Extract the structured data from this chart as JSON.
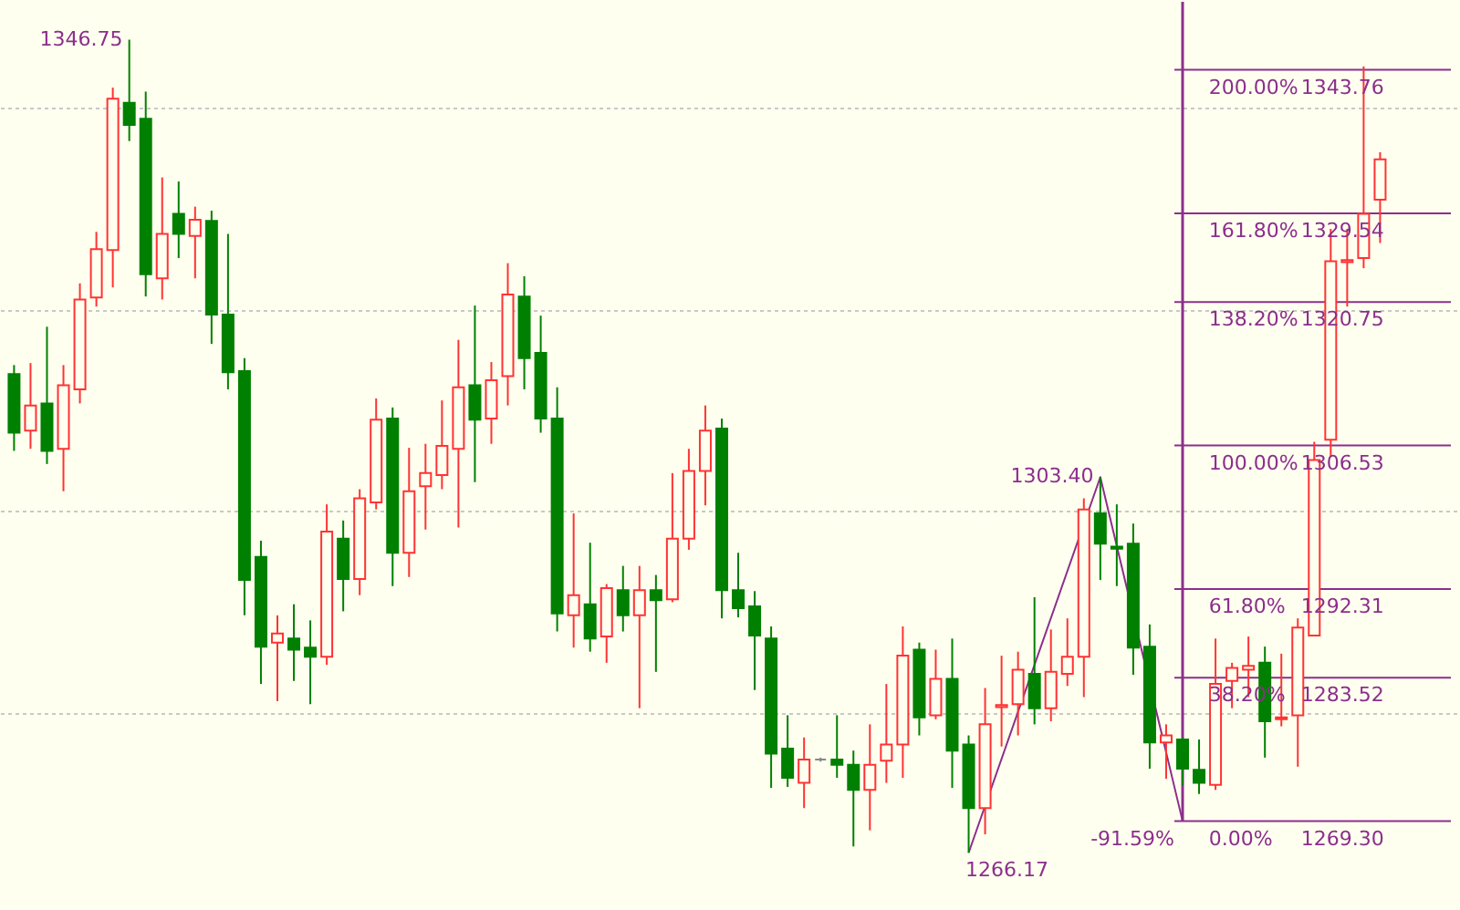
{
  "chart_data": {
    "type": "candlestick",
    "categories": [
      null,
      null,
      null,
      null,
      null,
      null,
      null,
      null,
      null,
      null,
      null,
      null,
      null,
      null,
      null,
      null,
      null,
      null,
      null,
      null,
      null,
      null,
      null,
      null,
      null,
      null,
      null,
      null,
      null,
      null,
      null,
      null,
      null,
      null,
      null,
      null,
      null,
      null,
      null,
      null,
      null,
      null,
      null,
      null,
      null,
      null,
      null,
      null,
      null,
      null,
      null,
      null,
      null,
      null,
      null,
      null,
      null,
      null,
      null,
      null,
      null,
      null,
      null,
      null,
      null,
      null,
      null,
      null,
      null,
      null,
      null,
      null,
      null,
      null,
      null,
      null,
      null,
      null,
      null,
      null,
      null,
      null,
      null,
      null
    ],
    "ohlc": [
      [
        1313.6,
        1314.5,
        1306.0,
        1307.8
      ],
      [
        1308.0,
        1314.7,
        1306.2,
        1310.5
      ],
      [
        1310.7,
        1318.3,
        1304.7,
        1306.0
      ],
      [
        1306.2,
        1314.5,
        1302.0,
        1312.5
      ],
      [
        1312.1,
        1322.6,
        1310.7,
        1321.0
      ],
      [
        1321.2,
        1327.7,
        1320.3,
        1326.0
      ],
      [
        1325.9,
        1342.0,
        1322.2,
        1340.9
      ],
      [
        1340.5,
        1346.75,
        1336.7,
        1338.3
      ],
      [
        1338.9,
        1341.6,
        1321.3,
        1323.5
      ],
      [
        1323.1,
        1333.1,
        1321.0,
        1327.5
      ],
      [
        1329.5,
        1332.7,
        1325.1,
        1327.5
      ],
      [
        1327.3,
        1330.2,
        1323.1,
        1328.9
      ],
      [
        1328.8,
        1329.8,
        1316.6,
        1319.5
      ],
      [
        1319.5,
        1327.5,
        1312.1,
        1313.8
      ],
      [
        1313.9,
        1315.2,
        1289.7,
        1293.2
      ],
      [
        1295.5,
        1297.1,
        1282.9,
        1286.6
      ],
      [
        1287.0,
        1289.7,
        1281.2,
        1287.9
      ],
      [
        1287.4,
        1290.8,
        1283.2,
        1286.3
      ],
      [
        1286.5,
        1289.2,
        1280.9,
        1285.6
      ],
      [
        1285.6,
        1300.7,
        1284.8,
        1298.0
      ],
      [
        1297.3,
        1299.1,
        1290.1,
        1293.3
      ],
      [
        1293.3,
        1302.2,
        1291.7,
        1301.3
      ],
      [
        1300.9,
        1311.2,
        1300.2,
        1309.1
      ],
      [
        1309.2,
        1310.3,
        1292.6,
        1295.9
      ],
      [
        1295.9,
        1306.3,
        1293.5,
        1302.0
      ],
      [
        1302.5,
        1306.7,
        1298.2,
        1303.8
      ],
      [
        1303.6,
        1311.0,
        1302.2,
        1306.5
      ],
      [
        1306.2,
        1317.0,
        1298.4,
        1312.3
      ],
      [
        1312.5,
        1320.4,
        1302.9,
        1309.1
      ],
      [
        1309.2,
        1314.8,
        1306.7,
        1313.0
      ],
      [
        1313.4,
        1324.6,
        1310.5,
        1321.5
      ],
      [
        1321.3,
        1323.3,
        1312.1,
        1315.2
      ],
      [
        1315.7,
        1319.4,
        1307.8,
        1309.2
      ],
      [
        1309.2,
        1312.3,
        1288.1,
        1289.9
      ],
      [
        1289.7,
        1299.8,
        1286.5,
        1291.7
      ],
      [
        1290.8,
        1296.9,
        1286.1,
        1287.4
      ],
      [
        1287.6,
        1292.8,
        1285.0,
        1292.4
      ],
      [
        1292.2,
        1294.6,
        1288.1,
        1289.7
      ],
      [
        1289.7,
        1294.6,
        1280.5,
        1292.2
      ],
      [
        1292.2,
        1293.7,
        1284.1,
        1291.2
      ],
      [
        1291.3,
        1303.8,
        1291.0,
        1297.3
      ],
      [
        1297.3,
        1306.2,
        1296.2,
        1304.0
      ],
      [
        1304.0,
        1310.5,
        1300.6,
        1308.0
      ],
      [
        1308.2,
        1309.2,
        1289.4,
        1292.2
      ],
      [
        1292.2,
        1295.9,
        1289.5,
        1290.4
      ],
      [
        1290.6,
        1292.1,
        1282.3,
        1287.7
      ],
      [
        1287.4,
        1288.6,
        1272.6,
        1276.0
      ],
      [
        1276.5,
        1279.8,
        1272.7,
        1273.6
      ],
      [
        1273.1,
        1277.6,
        1270.6,
        1275.4
      ],
      [
        1275.4,
        1275.6,
        1275.2,
        1275.4
      ],
      [
        1275.4,
        1279.8,
        1273.6,
        1274.9
      ],
      [
        1274.9,
        1276.3,
        1266.8,
        1272.4
      ],
      [
        1272.4,
        1278.9,
        1268.4,
        1274.9
      ],
      [
        1275.3,
        1282.9,
        1273.1,
        1276.9
      ],
      [
        1276.9,
        1288.6,
        1273.6,
        1285.7
      ],
      [
        1286.3,
        1287.0,
        1277.8,
        1279.6
      ],
      [
        1279.8,
        1286.3,
        1279.4,
        1283.4
      ],
      [
        1283.4,
        1287.4,
        1272.6,
        1276.3
      ],
      [
        1276.9,
        1277.8,
        1266.17,
        1270.6
      ],
      [
        1270.6,
        1282.5,
        1268.0,
        1278.9
      ],
      [
        1280.6,
        1285.7,
        1276.7,
        1280.8
      ],
      [
        1280.9,
        1286.1,
        1277.8,
        1284.3
      ],
      [
        1283.9,
        1291.5,
        1278.9,
        1280.5
      ],
      [
        1280.5,
        1288.3,
        1279.2,
        1284.1
      ],
      [
        1283.9,
        1289.4,
        1282.7,
        1285.6
      ],
      [
        1285.6,
        1301.3,
        1281.6,
        1300.2
      ],
      [
        1299.8,
        1303.4,
        1293.2,
        1296.8
      ],
      [
        1296.5,
        1300.7,
        1292.6,
        1296.3
      ],
      [
        1296.8,
        1298.8,
        1283.8,
        1286.5
      ],
      [
        1286.6,
        1288.8,
        1274.5,
        1277.1
      ],
      [
        1277.1,
        1278.9,
        1273.5,
        1277.8
      ],
      [
        1277.4,
        1277.6,
        1272.9,
        1274.5
      ],
      [
        1274.4,
        1277.4,
        1272.0,
        1273.1
      ],
      [
        1272.9,
        1287.4,
        1272.4,
        1282.9
      ],
      [
        1283.2,
        1285.0,
        1280.5,
        1284.5
      ],
      [
        1284.3,
        1287.6,
        1281.6,
        1284.7
      ],
      [
        1285.0,
        1286.6,
        1275.6,
        1279.2
      ],
      [
        1279.4,
        1285.9,
        1278.7,
        1279.6
      ],
      [
        1279.8,
        1289.4,
        1274.7,
        1288.5
      ],
      [
        1287.7,
        1306.9,
        1287.7,
        1305.1
      ],
      [
        1307.1,
        1328.0,
        1305.4,
        1324.8
      ],
      [
        1324.7,
        1328.0,
        1320.3,
        1324.9
      ],
      [
        1325.1,
        1344.1,
        1324.1,
        1329.5
      ],
      [
        1330.9,
        1335.6,
        1326.6,
        1334.9
      ]
    ],
    "colors": [
      "#008000",
      "#ff3333",
      "#008000",
      "#ff3333",
      "#ff3333",
      "#ff3333",
      "#ff3333",
      "#008000",
      "#008000",
      "#ff3333",
      "#008000",
      "#ff3333",
      "#008000",
      "#008000",
      "#008000",
      "#008000",
      "#ff3333",
      "#008000",
      "#008000",
      "#ff3333",
      "#008000",
      "#ff3333",
      "#ff3333",
      "#008000",
      "#ff3333",
      "#ff3333",
      "#ff3333",
      "#ff3333",
      "#008000",
      "#ff3333",
      "#ff3333",
      "#008000",
      "#008000",
      "#008000",
      "#ff3333",
      "#008000",
      "#ff3333",
      "#008000",
      "#ff3333",
      "#008000",
      "#ff3333",
      "#ff3333",
      "#ff3333",
      "#008000",
      "#008000",
      "#008000",
      "#008000",
      "#008000",
      "#ff3333",
      "#888888",
      "#008000",
      "#008000",
      "#ff3333",
      "#ff3333",
      "#ff3333",
      "#008000",
      "#ff3333",
      "#008000",
      "#008000",
      "#ff3333",
      "#ff3333",
      "#ff3333",
      "#008000",
      "#ff3333",
      "#ff3333",
      "#ff3333",
      "#008000",
      "#008000",
      "#008000",
      "#008000",
      "#ff3333",
      "#008000",
      "#008000",
      "#ff3333",
      "#ff3333",
      "#ff3333",
      "#008000",
      "#ff3333",
      "#ff3333",
      "#ff3333",
      "#ff3333",
      "#ff3333",
      "#ff3333",
      "#ff3333"
    ],
    "series": [
      {
        "type": "line",
        "color": "#8b2f8b",
        "values": [
          null,
          null,
          null,
          null,
          null,
          null,
          null,
          null,
          null,
          null,
          null,
          null,
          null,
          null,
          null,
          null,
          null,
          null,
          null,
          null,
          null,
          null,
          null,
          null,
          null,
          null,
          null,
          null,
          null,
          null,
          null,
          null,
          null,
          null,
          null,
          null,
          null,
          null,
          null,
          null,
          null,
          null,
          null,
          null,
          null,
          null,
          null,
          null,
          null,
          null,
          null,
          null,
          null,
          null,
          null,
          null,
          null,
          null,
          1266.17,
          null,
          null,
          null,
          null,
          null,
          null,
          null,
          1303.4,
          null,
          null,
          null,
          null,
          1269.3,
          null,
          null,
          null,
          null,
          null,
          null,
          null,
          null,
          null,
          null,
          null,
          null
        ]
      }
    ],
    "ylim": [
      1260.5,
      1350.5
    ],
    "yticks": [
      {
        "value": 1280,
        "label": null
      },
      {
        "value": 1300,
        "label": null
      },
      {
        "value": 1320,
        "label": null
      },
      {
        "value": 1340,
        "label": null
      }
    ],
    "grid": "y",
    "tick_labels": false,
    "ref_lines": [
      {
        "axis": "y",
        "value": 1343.76,
        "label": "1343.76",
        "color": "#8b2f8b"
      },
      {
        "axis": "y",
        "value": 1329.54,
        "label": "1329.54",
        "color": "#8b2f8b"
      },
      {
        "axis": "y",
        "value": 1320.75,
        "label": "1320.75",
        "color": "#8b2f8b"
      },
      {
        "axis": "y",
        "value": 1306.53,
        "label": "1306.53",
        "color": "#8b2f8b"
      },
      {
        "axis": "y",
        "value": 1292.31,
        "label": "1292.31",
        "color": "#8b2f8b"
      },
      {
        "axis": "y",
        "value": 1283.52,
        "label": "1283.52",
        "color": "#8b2f8b"
      },
      {
        "axis": "y",
        "value": 1269.3,
        "label": "1269.30",
        "color": "#8b2f8b"
      }
    ],
    "annotations": [
      "200.00%",
      "161.80%",
      "138.20%",
      "100.00%",
      "61.80%",
      "38.20%",
      "0.00%",
      "1346.75",
      "1303.40",
      "1266.17",
      "-91.59%"
    ]
  }
}
